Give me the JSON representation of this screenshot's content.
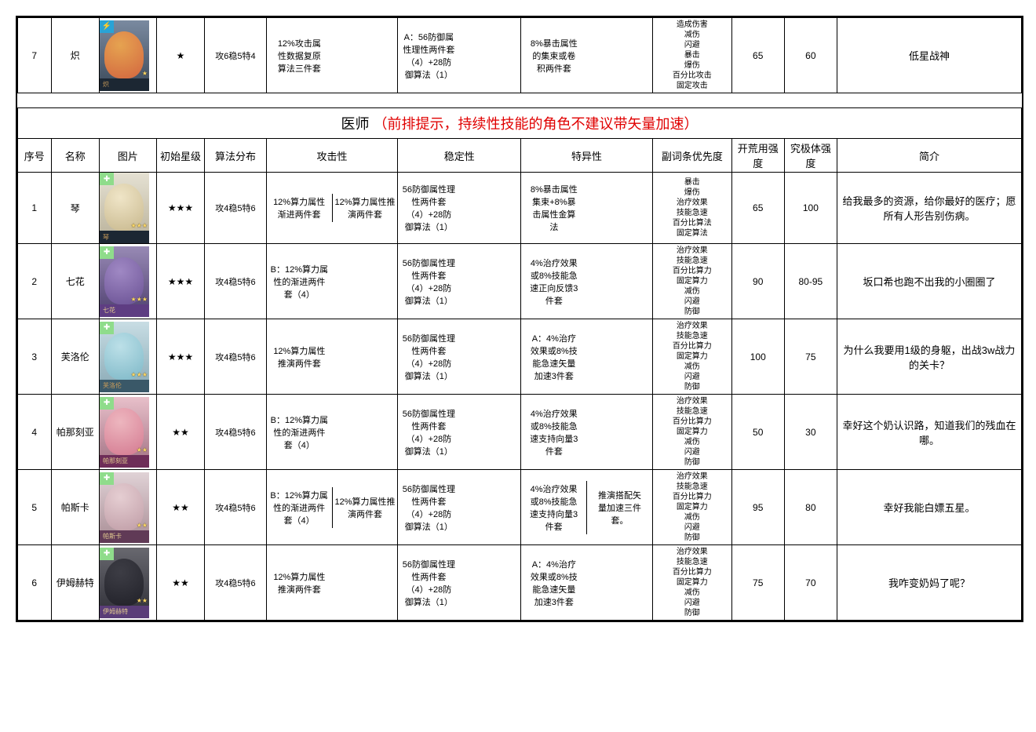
{
  "top_row": {
    "idx": 7,
    "name": "炽",
    "stars": "★",
    "dist": "攻6稳5特4",
    "atk_b": "12%攻击属\n性数据复原\n算法三件套",
    "stab_a": "A：56防御属\n性理性两件套\n（4）+28防\n御算法（1）",
    "spec_a": "8%暴击属性\n的集束或卷\n积两件套",
    "sub": "造成伤害\n减伤\n闪避\n暴击\n爆伤\n百分比攻击\n固定攻击",
    "open": 65,
    "ult": 60,
    "desc": "低星战神",
    "portrait": {
      "corner_bg": "#29a3d6",
      "corner_txt": "⚡",
      "art1": "#f4a84a",
      "art2": "#e2673b",
      "bottom_bg": "#1c2733",
      "bottom_txt": "炽",
      "bottom_color": "#c89b5a",
      "mini_stars": "★",
      "bg_top": "#7a8aa0",
      "bg_bot": "#3a4858"
    }
  },
  "section": {
    "title": "医师",
    "note": "（前排提示，持续性技能的角色不建议带矢量加速）"
  },
  "headers": {
    "idx": "序号",
    "name": "名称",
    "img": "图片",
    "stars": "初始星级",
    "dist": "算法分布",
    "atk": "攻击性",
    "stab": "稳定性",
    "spec": "特异性",
    "sub": "副词条优先度",
    "open": "开荒用强度",
    "ult": "究极体强度",
    "desc": "简介"
  },
  "rows": [
    {
      "idx": 1,
      "name": "琴",
      "stars": "★★★",
      "dist": "攻4稳5特6",
      "atk_a": "12%算力属性\n渐进两件套",
      "atk_b": "12%算力属性推\n演两件套",
      "stab": "56防御属性理\n性两件套\n（4）+28防\n御算法（1）",
      "spec_a": "8%暴击属性\n集束+8%暴\n击属性金算\n法",
      "spec_b": "",
      "sub": "暴击\n爆伤\n治疗效果\n技能急速\n百分比算法\n固定算法",
      "open": 65,
      "ult": 100,
      "desc": "给我最多的资源，给你最好的医疗；愿所有人形告别伤病。",
      "portrait": {
        "corner_bg": "#8fdc8b",
        "corner_txt": "✚",
        "art1": "#f2e7c8",
        "art2": "#c8b78a",
        "bottom_bg": "#1c2733",
        "bottom_txt": "琴",
        "bottom_color": "#c89b5a",
        "mini_stars": "★★★",
        "bg_top": "#e5e1d3",
        "bg_bot": "#b8b098"
      }
    },
    {
      "idx": 2,
      "name": "七花",
      "stars": "★★★",
      "dist": "攻4稳5特6",
      "atk_a": "B：12%算力属\n性的渐进两件\n套（4）",
      "atk_b": "",
      "stab": "56防御属性理\n性两件套\n（4）+28防\n御算法（1）",
      "spec_a": "4%治疗效果\n或8%技能急\n速正向反馈3\n件套",
      "spec_b": "",
      "sub": "治疗效果\n技能急速\n百分比算力\n固定算力\n减伤\n闪避\n防御",
      "open": 90,
      "ult": "80-95",
      "desc": "坂口希也跑不出我的小圈圈了",
      "portrait": {
        "corner_bg": "#8fdc8b",
        "corner_txt": "✚",
        "art1": "#a38bc8",
        "art2": "#6b5196",
        "bottom_bg": "#5e3d82",
        "bottom_txt": "七花",
        "bottom_color": "#e0c890",
        "mini_stars": "★★★",
        "bg_top": "#988ab5",
        "bg_bot": "#4d3e6e"
      }
    },
    {
      "idx": 3,
      "name": "芙洛伦",
      "stars": "★★★",
      "dist": "攻4稳5特6",
      "atk_a": "12%算力属性\n推演两件套",
      "atk_b": "",
      "stab": "56防御属性理\n性两件套\n（4）+28防\n御算法（1）",
      "spec_a": "A：4%治疗\n效果或8%技\n能急速矢量\n加速3件套",
      "spec_b": "",
      "sub": "治疗效果\n技能急速\n百分比算力\n固定算力\n减伤\n闪避\n防御",
      "open": 100,
      "ult": 75,
      "desc": "为什么我要用1级的身躯，出战3w战力的关卡？",
      "portrait": {
        "corner_bg": "#8fdc8b",
        "corner_txt": "✚",
        "art1": "#bde2ea",
        "art2": "#7ab8c8",
        "bottom_bg": "#3a5868",
        "bottom_txt": "芙洛伦",
        "bottom_color": "#c89b5a",
        "mini_stars": "★★★",
        "bg_top": "#c8dde4",
        "bg_bot": "#88a8b4"
      }
    },
    {
      "idx": 4,
      "name": "帕那刻亚",
      "stars": "★★",
      "dist": "攻4稳5特6",
      "atk_a": "B：12%算力属\n性的渐进两件\n套（4）",
      "atk_b": "",
      "stab": "56防御属性理\n性两件套\n（4）+28防\n御算法（1）",
      "spec_a": "4%治疗效果\n或8%技能急\n速支持向量3\n件套",
      "spec_b": "",
      "sub": "治疗效果\n技能急速\n百分比算力\n固定算力\n减伤\n闪避\n防御",
      "open": 50,
      "ult": 30,
      "desc": "幸好这个奶认识路，知道我们的残血在哪。",
      "portrait": {
        "corner_bg": "#8fdc8b",
        "corner_txt": "✚",
        "art1": "#f0b8c0",
        "art2": "#d87890",
        "bottom_bg": "#6e2d58",
        "bottom_txt": "帕那刻亚",
        "bottom_color": "#e0c890",
        "mini_stars": "★★",
        "bg_top": "#e8c0ca",
        "bg_bot": "#a07082"
      }
    },
    {
      "idx": 5,
      "name": "帕斯卡",
      "stars": "★★",
      "dist": "攻4稳5特6",
      "atk_a": "B：12%算力属\n性的渐进两件\n套（4）",
      "atk_b": "12%算力属性推\n演两件套",
      "stab": "56防御属性理\n性两件套\n（4）+28防\n御算法（1）",
      "spec_a": "4%治疗效果\n或8%技能急\n速支持向量3\n件套",
      "spec_b": "推演搭配矢\n量加速三件\n套。",
      "sub": "治疗效果\n技能急速\n百分比算力\n固定算力\n减伤\n闪避\n防御",
      "open": 95,
      "ult": 80,
      "desc": "幸好我能白嫖五星。",
      "portrait": {
        "corner_bg": "#8fdc8b",
        "corner_txt": "✚",
        "art1": "#e8d0d4",
        "art2": "#c09ca6",
        "bottom_bg": "#603a56",
        "bottom_txt": "帕斯卡",
        "bottom_color": "#e0c890",
        "mini_stars": "★★",
        "bg_top": "#e0d2d6",
        "bg_bot": "#a88c94"
      }
    },
    {
      "idx": 6,
      "name": "伊姆赫特",
      "stars": "★★",
      "dist": "攻4稳5特6",
      "atk_a": "12%算力属性\n推演两件套",
      "atk_b": "",
      "stab": "56防御属性理\n性两件套\n（4）+28防\n御算法（1）",
      "spec_a": "A：4%治疗\n效果或8%技\n能急速矢量\n加速3件套",
      "spec_b": "",
      "sub": "治疗效果\n技能急速\n百分比算力\n固定算力\n减伤\n闪避\n防御",
      "open": 75,
      "ult": 70,
      "desc": "我咋变奶妈了呢？",
      "portrait": {
        "corner_bg": "#8fdc8b",
        "corner_txt": "✚",
        "art1": "#3a3a42",
        "art2": "#1e1e26",
        "bottom_bg": "#5a3d78",
        "bottom_txt": "伊姆赫特",
        "bottom_color": "#e0c890",
        "mini_stars": "★★",
        "bg_top": "#68686f",
        "bg_bot": "#2e2e36"
      }
    }
  ]
}
